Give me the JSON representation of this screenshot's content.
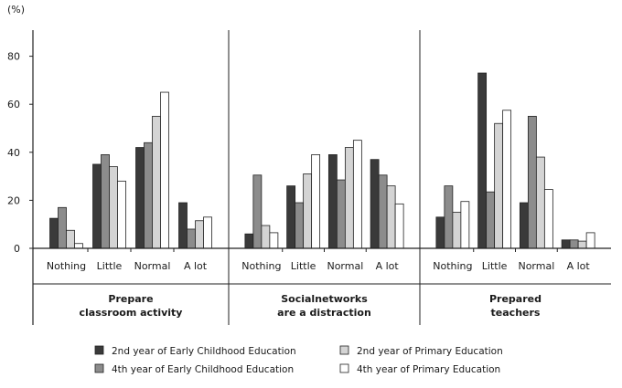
{
  "chart_data": {
    "type": "bar",
    "y_unit_label": "(%)",
    "ylim": [
      0,
      90
    ],
    "y_ticks": [
      0,
      20,
      40,
      60,
      80
    ],
    "grid": false,
    "legend_position": "bottom",
    "groups": [
      {
        "title_lines": [
          "Prepare",
          "classroom activity"
        ],
        "categories": [
          "Nothing",
          "Little",
          "Normal",
          "A lot"
        ]
      },
      {
        "title_lines": [
          "Socialnetworks",
          "are a distraction"
        ],
        "categories": [
          "Nothing",
          "Little",
          "Normal",
          "A lot"
        ]
      },
      {
        "title_lines": [
          "Prepared",
          "teachers"
        ],
        "categories": [
          "Nothing",
          "Little",
          "Normal",
          "A lot"
        ]
      }
    ],
    "series": [
      {
        "name": "2nd year of Early Childhood Education",
        "color": "#3a3a3a",
        "values": [
          [
            12.5,
            35,
            42,
            19
          ],
          [
            6,
            26,
            39,
            37
          ],
          [
            13,
            73,
            19,
            3.5
          ]
        ]
      },
      {
        "name": "4th year of Early Childhood Education",
        "color": "#8c8c8c",
        "values": [
          [
            17,
            39,
            44,
            8
          ],
          [
            30.5,
            19,
            28.5,
            30.5
          ],
          [
            26,
            23.5,
            55,
            3.5
          ]
        ]
      },
      {
        "name": "2nd year of Primary Education",
        "color": "#d4d4d4",
        "values": [
          [
            7.5,
            34,
            55,
            11.5
          ],
          [
            9.5,
            31,
            42,
            26
          ],
          [
            15,
            52,
            38,
            3
          ]
        ]
      },
      {
        "name": "4th year of Primary Education",
        "color": "#ffffff",
        "values": [
          [
            2,
            28,
            65,
            13
          ],
          [
            6.5,
            39,
            45,
            18.5
          ],
          [
            19.5,
            57.5,
            24.5,
            6.5
          ]
        ]
      }
    ]
  }
}
